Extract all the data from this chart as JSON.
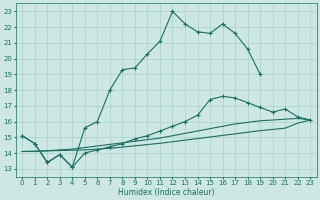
{
  "bg_color": "#cde8e3",
  "grid_color": "#a8d0ca",
  "line_color": "#1a6e62",
  "xlabel": "Humidex (Indice chaleur)",
  "xlim": [
    -0.5,
    23.5
  ],
  "ylim": [
    12.5,
    23.5
  ],
  "xticks": [
    0,
    1,
    2,
    3,
    4,
    5,
    6,
    7,
    8,
    9,
    10,
    11,
    12,
    13,
    14,
    15,
    16,
    17,
    18,
    19,
    20,
    21,
    22,
    23
  ],
  "yticks": [
    13,
    14,
    15,
    16,
    17,
    18,
    19,
    20,
    21,
    22,
    23
  ],
  "line1_x": [
    0,
    1,
    2,
    3,
    4,
    5,
    6,
    7,
    8,
    9,
    10,
    11,
    12,
    13,
    14,
    15,
    16,
    17,
    18,
    19
  ],
  "line1_y": [
    15.1,
    14.6,
    13.4,
    13.9,
    13.1,
    15.6,
    16.0,
    18.0,
    19.3,
    19.4,
    20.3,
    21.1,
    23.0,
    22.2,
    21.7,
    21.6,
    22.2,
    21.6,
    20.6,
    19.0
  ],
  "line2_x": [
    0,
    1,
    2,
    3,
    4,
    5,
    6,
    7,
    8,
    9,
    10,
    11,
    12,
    13,
    14,
    15,
    16,
    17,
    18,
    19,
    20,
    21,
    22,
    23
  ],
  "line2_y": [
    15.1,
    14.6,
    13.4,
    13.9,
    13.1,
    14.0,
    14.2,
    14.4,
    14.6,
    14.9,
    15.1,
    15.4,
    15.7,
    16.0,
    16.4,
    17.4,
    17.6,
    17.5,
    17.2,
    16.9,
    16.6,
    16.8,
    16.3,
    16.1
  ],
  "line3_x": [
    0,
    1,
    2,
    3,
    4,
    5,
    6,
    7,
    8,
    9,
    10,
    11,
    12,
    13,
    14,
    15,
    16,
    17,
    18,
    19,
    20,
    21,
    22,
    23
  ],
  "line3_y": [
    14.1,
    14.1,
    14.15,
    14.2,
    14.25,
    14.35,
    14.45,
    14.55,
    14.65,
    14.75,
    14.85,
    14.95,
    15.1,
    15.25,
    15.4,
    15.55,
    15.7,
    15.85,
    15.95,
    16.05,
    16.1,
    16.15,
    16.2,
    16.1
  ],
  "line4_x": [
    0,
    1,
    2,
    3,
    4,
    5,
    6,
    7,
    8,
    9,
    10,
    11,
    12,
    13,
    14,
    15,
    16,
    17,
    18,
    19,
    20,
    21,
    22,
    23
  ],
  "line4_y": [
    14.1,
    14.12,
    14.14,
    14.16,
    14.18,
    14.2,
    14.25,
    14.3,
    14.38,
    14.46,
    14.54,
    14.62,
    14.72,
    14.82,
    14.92,
    15.02,
    15.12,
    15.22,
    15.32,
    15.42,
    15.5,
    15.58,
    15.9,
    16.1
  ]
}
